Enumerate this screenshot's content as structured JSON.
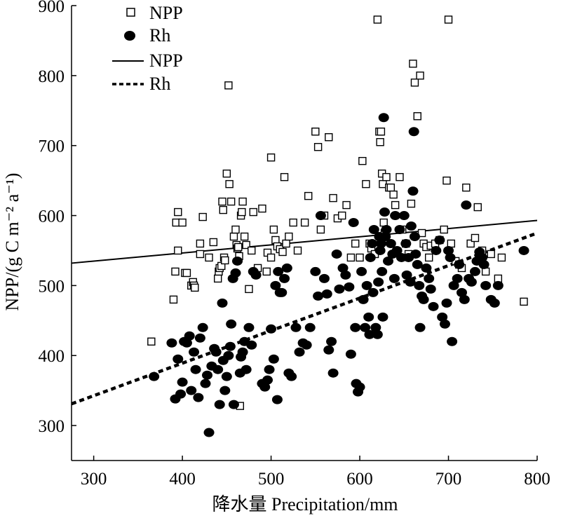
{
  "chart_data": {
    "type": "scatter",
    "xlabel": "降水量 Precipitation/mm",
    "ylabel": "NPP/(g C m⁻² a⁻¹)",
    "xlim": [
      275,
      800
    ],
    "ylim": [
      250,
      900
    ],
    "xticks": [
      "300",
      "400",
      "500",
      "600",
      "700",
      "800"
    ],
    "yticks": [
      "300",
      "400",
      "500",
      "600",
      "700",
      "800",
      "900"
    ],
    "legend": {
      "position": "top-left",
      "entries": [
        {
          "label": "NPP",
          "marker": "open-square"
        },
        {
          "label": "Rh",
          "marker": "filled-circle"
        },
        {
          "label": "NPP",
          "line": "solid"
        },
        {
          "label": "Rh",
          "line": "dashed"
        }
      ]
    },
    "fit_lines": [
      {
        "name": "NPP",
        "style": "solid",
        "x": [
          275,
          800
        ],
        "y": [
          532,
          593
        ]
      },
      {
        "name": "Rh",
        "style": "dashed",
        "x": [
          275,
          800
        ],
        "y": [
          331,
          575
        ]
      }
    ],
    "series": [
      {
        "name": "NPP",
        "marker": "open-square",
        "points": [
          [
            365,
            420
          ],
          [
            390,
            480
          ],
          [
            392,
            520
          ],
          [
            393,
            590
          ],
          [
            395,
            605
          ],
          [
            395,
            550
          ],
          [
            400,
            590
          ],
          [
            403,
            518
          ],
          [
            405,
            518
          ],
          [
            410,
            500
          ],
          [
            412,
            505
          ],
          [
            413,
            500
          ],
          [
            414,
            497
          ],
          [
            420,
            545
          ],
          [
            420,
            560
          ],
          [
            423,
            598
          ],
          [
            430,
            540
          ],
          [
            435,
            562
          ],
          [
            440,
            510
          ],
          [
            441,
            520
          ],
          [
            442,
            525
          ],
          [
            444,
            528
          ],
          [
            445,
            620
          ],
          [
            446,
            608
          ],
          [
            447,
            540
          ],
          [
            448,
            536
          ],
          [
            450,
            660
          ],
          [
            452,
            786
          ],
          [
            453,
            645
          ],
          [
            455,
            620
          ],
          [
            458,
            570
          ],
          [
            460,
            580
          ],
          [
            461,
            558
          ],
          [
            462,
            553
          ],
          [
            463,
            555
          ],
          [
            464,
            542
          ],
          [
            465,
            328
          ],
          [
            466,
            600
          ],
          [
            467,
            605
          ],
          [
            468,
            620
          ],
          [
            470,
            570
          ],
          [
            472,
            558
          ],
          [
            475,
            495
          ],
          [
            478,
            550
          ],
          [
            480,
            605
          ],
          [
            485,
            525
          ],
          [
            490,
            610
          ],
          [
            495,
            520
          ],
          [
            496,
            547
          ],
          [
            500,
            683
          ],
          [
            500,
            540
          ],
          [
            503,
            580
          ],
          [
            505,
            565
          ],
          [
            507,
            556
          ],
          [
            510,
            552
          ],
          [
            513,
            548
          ],
          [
            515,
            655
          ],
          [
            517,
            560
          ],
          [
            520,
            570
          ],
          [
            525,
            590
          ],
          [
            530,
            550
          ],
          [
            538,
            590
          ],
          [
            542,
            628
          ],
          [
            550,
            720
          ],
          [
            553,
            698
          ],
          [
            556,
            580
          ],
          [
            560,
            600
          ],
          [
            565,
            712
          ],
          [
            570,
            625
          ],
          [
            575,
            596
          ],
          [
            580,
            600
          ],
          [
            585,
            615
          ],
          [
            590,
            540
          ],
          [
            595,
            560
          ],
          [
            600,
            540
          ],
          [
            603,
            678
          ],
          [
            607,
            645
          ],
          [
            611,
            560
          ],
          [
            613,
            553
          ],
          [
            617,
            545
          ],
          [
            620,
            880
          ],
          [
            622,
            720
          ],
          [
            623,
            705
          ],
          [
            624,
            720
          ],
          [
            625,
            660
          ],
          [
            626,
            645
          ],
          [
            627,
            590
          ],
          [
            628,
            575
          ],
          [
            630,
            655
          ],
          [
            633,
            640
          ],
          [
            635,
            640
          ],
          [
            638,
            630
          ],
          [
            640,
            615
          ],
          [
            645,
            655
          ],
          [
            648,
            580
          ],
          [
            652,
            560
          ],
          [
            655,
            545
          ],
          [
            658,
            617
          ],
          [
            660,
            817
          ],
          [
            662,
            790
          ],
          [
            665,
            742
          ],
          [
            668,
            800
          ],
          [
            670,
            575
          ],
          [
            672,
            560
          ],
          [
            675,
            555
          ],
          [
            678,
            540
          ],
          [
            680,
            557
          ],
          [
            685,
            560
          ],
          [
            690,
            565
          ],
          [
            695,
            580
          ],
          [
            698,
            650
          ],
          [
            700,
            880
          ],
          [
            703,
            560
          ],
          [
            708,
            535
          ],
          [
            712,
            530
          ],
          [
            715,
            525
          ],
          [
            720,
            640
          ],
          [
            725,
            560
          ],
          [
            730,
            568
          ],
          [
            733,
            612
          ],
          [
            738,
            550
          ],
          [
            742,
            520
          ],
          [
            748,
            545
          ],
          [
            756,
            510
          ],
          [
            760,
            540
          ],
          [
            785,
            477
          ]
        ]
      },
      {
        "name": "Rh",
        "marker": "filled-circle",
        "points": [
          [
            368,
            370
          ],
          [
            388,
            418
          ],
          [
            392,
            338
          ],
          [
            395,
            395
          ],
          [
            398,
            345
          ],
          [
            400,
            362
          ],
          [
            402,
            420
          ],
          [
            405,
            418
          ],
          [
            408,
            428
          ],
          [
            410,
            350
          ],
          [
            413,
            405
          ],
          [
            415,
            380
          ],
          [
            418,
            340
          ],
          [
            420,
            425
          ],
          [
            423,
            440
          ],
          [
            426,
            360
          ],
          [
            428,
            372
          ],
          [
            430,
            290
          ],
          [
            433,
            385
          ],
          [
            436,
            410
          ],
          [
            438,
            405
          ],
          [
            440,
            380
          ],
          [
            442,
            330
          ],
          [
            445,
            475
          ],
          [
            446,
            393
          ],
          [
            448,
            350
          ],
          [
            450,
            370
          ],
          [
            452,
            400
          ],
          [
            454,
            413
          ],
          [
            455,
            445
          ],
          [
            457,
            510
          ],
          [
            458,
            330
          ],
          [
            460,
            518
          ],
          [
            462,
            535
          ],
          [
            465,
            375
          ],
          [
            466,
            398
          ],
          [
            468,
            405
          ],
          [
            470,
            420
          ],
          [
            472,
            380
          ],
          [
            475,
            440
          ],
          [
            478,
            415
          ],
          [
            480,
            520
          ],
          [
            483,
            515
          ],
          [
            490,
            360
          ],
          [
            493,
            355
          ],
          [
            496,
            365
          ],
          [
            498,
            380
          ],
          [
            500,
            438
          ],
          [
            503,
            395
          ],
          [
            505,
            500
          ],
          [
            507,
            337
          ],
          [
            508,
            520
          ],
          [
            510,
            490
          ],
          [
            512,
            490
          ],
          [
            515,
            510
          ],
          [
            518,
            525
          ],
          [
            520,
            375
          ],
          [
            523,
            370
          ],
          [
            528,
            440
          ],
          [
            532,
            405
          ],
          [
            536,
            418
          ],
          [
            540,
            415
          ],
          [
            544,
            440
          ],
          [
            550,
            520
          ],
          [
            553,
            485
          ],
          [
            556,
            600
          ],
          [
            560,
            510
          ],
          [
            563,
            488
          ],
          [
            565,
            408
          ],
          [
            568,
            420
          ],
          [
            570,
            375
          ],
          [
            574,
            545
          ],
          [
            577,
            495
          ],
          [
            581,
            525
          ],
          [
            584,
            515
          ],
          [
            588,
            498
          ],
          [
            590,
            402
          ],
          [
            593,
            590
          ],
          [
            595,
            440
          ],
          [
            596,
            360
          ],
          [
            598,
            348
          ],
          [
            600,
            355
          ],
          [
            602,
            520
          ],
          [
            604,
            480
          ],
          [
            606,
            440
          ],
          [
            608,
            500
          ],
          [
            610,
            455
          ],
          [
            611,
            430
          ],
          [
            612,
            540
          ],
          [
            614,
            560
          ],
          [
            615,
            490
          ],
          [
            616,
            580
          ],
          [
            618,
            440
          ],
          [
            620,
            430
          ],
          [
            621,
            505
          ],
          [
            622,
            570
          ],
          [
            623,
            550
          ],
          [
            624,
            560
          ],
          [
            625,
            520
          ],
          [
            626,
            455
          ],
          [
            627,
            740
          ],
          [
            628,
            605
          ],
          [
            629,
            570
          ],
          [
            630,
            580
          ],
          [
            632,
            535
          ],
          [
            635,
            560
          ],
          [
            637,
            545
          ],
          [
            639,
            510
          ],
          [
            640,
            600
          ],
          [
            642,
            550
          ],
          [
            645,
            580
          ],
          [
            647,
            540
          ],
          [
            650,
            600
          ],
          [
            652,
            560
          ],
          [
            653,
            515
          ],
          [
            655,
            540
          ],
          [
            657,
            505
          ],
          [
            658,
            585
          ],
          [
            660,
            635
          ],
          [
            661,
            720
          ],
          [
            662,
            570
          ],
          [
            663,
            545
          ],
          [
            665,
            530
          ],
          [
            667,
            500
          ],
          [
            668,
            440
          ],
          [
            670,
            485
          ],
          [
            672,
            480
          ],
          [
            675,
            525
          ],
          [
            678,
            510
          ],
          [
            680,
            495
          ],
          [
            683,
            470
          ],
          [
            686,
            550
          ],
          [
            690,
            565
          ],
          [
            693,
            455
          ],
          [
            696,
            445
          ],
          [
            698,
            475
          ],
          [
            700,
            550
          ],
          [
            702,
            540
          ],
          [
            704,
            420
          ],
          [
            706,
            500
          ],
          [
            710,
            510
          ],
          [
            712,
            530
          ],
          [
            715,
            490
          ],
          [
            718,
            480
          ],
          [
            720,
            615
          ],
          [
            723,
            510
          ],
          [
            726,
            505
          ],
          [
            730,
            520
          ],
          [
            732,
            535
          ],
          [
            735,
            548
          ],
          [
            738,
            540
          ],
          [
            740,
            530
          ],
          [
            742,
            500
          ],
          [
            748,
            480
          ],
          [
            752,
            475
          ],
          [
            756,
            500
          ],
          [
            785,
            550
          ]
        ]
      }
    ]
  }
}
